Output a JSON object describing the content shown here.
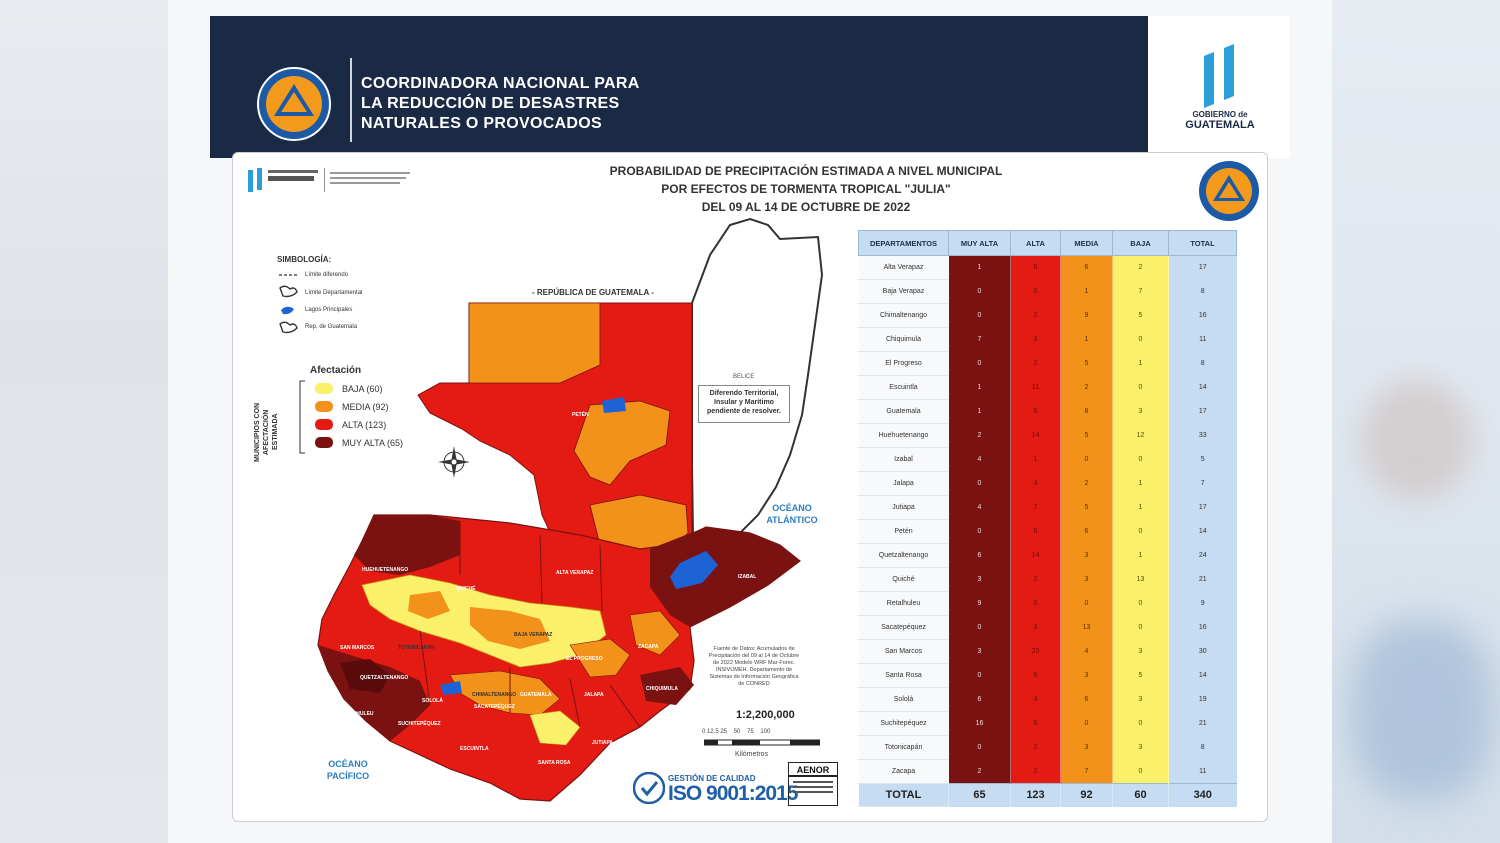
{
  "header": {
    "org_lines": [
      "COORDINADORA NACIONAL PARA",
      "LA REDUCCIÓN DE DESASTRES",
      "NATURALES O PROVOCADOS"
    ],
    "logo_text": "CONRED",
    "gov_line1": "GOBIERNO de",
    "gov_line2": "GUATEMALA"
  },
  "map": {
    "title_lines": [
      "PROBABILIDAD DE PRECIPITACIÓN ESTIMADA A NIVEL MUNICIPAL",
      "POR EFECTOS DE TORMENTA TROPICAL \"JULIA\"",
      "DEL 09 AL  14  DE OCTUBRE DE 2022"
    ],
    "simbologia_title": "SIMBOLOGÍA:",
    "simbologia": [
      "Límite diferendo",
      "Límite Departamental",
      "Lagos Principales",
      "Rep. de Guatemala"
    ],
    "afectacion_title": "Afectación",
    "vertical_label": "MUNICIPIOS CON AFECTACIÓN ESTIMADA",
    "afectacion": [
      {
        "label": "BAJA (60)",
        "color": "#fbf06a"
      },
      {
        "label": "MEDIA (92)",
        "color": "#f2921a"
      },
      {
        "label": "ALTA (123)",
        "color": "#e31b12"
      },
      {
        "label": "MUY ALTA (65)",
        "color": "#7a1212"
      }
    ],
    "republica_label": "- REPÚBLICA DE GUATEMALA -",
    "belice_label": "BELICE",
    "diferendo": "Diferendo Territorial, Insular y Marítimo pendiente de resolver.",
    "ocean_atlantic": "OCÉANO ATLÁNTICO",
    "ocean_pacific": "OCÉANO PACÍFICO",
    "fuente": "Fuente de Datos: Acumulados de Precipitación del 09 al 14 de Octubre de 2022 Modelo WRF Mar-Forec. INSIVUMEH. Departamento de Sistemas de Información Geográfica de CONRED",
    "scale": "1:2,200,000",
    "scale_ticks": "0 12.5 25    50    75    100",
    "km_label": "Kilómetros",
    "iso_small": "GESTIÓN DE CALIDAD",
    "iso_big": "ISO 9001:2015",
    "aenor": "AENOR",
    "dept_labels": [
      "PETÉN",
      "IZABAL",
      "ALTA VERAPAZ",
      "BAJA VERAPAZ",
      "HUEHUETENANGO",
      "QUICHÉ",
      "SAN MARCOS",
      "TOTONICAPÁN",
      "QUETZALTENANGO",
      "ZACAPA",
      "CHIQUIMULA",
      "JALAPA",
      "JUTIAPA",
      "ESCUINTLA",
      "SANTA ROSA",
      "RETALHULEU",
      "SUCHITEPÉQUEZ",
      "GUATEMALA",
      "EL PROGRESO",
      "CHIMALTENANGO",
      "SOLOLÁ",
      "SACATEPÉQUEZ"
    ]
  },
  "table": {
    "headers": [
      "DEPARTAMENTOS",
      "MUY ALTA",
      "ALTA",
      "MEDIA",
      "BAJA",
      "TOTAL"
    ],
    "rows": [
      [
        "Alta Verapaz",
        "1",
        "8",
        "6",
        "2",
        "17"
      ],
      [
        "Baja Verapaz",
        "0",
        "0",
        "1",
        "7",
        "8"
      ],
      [
        "Chimaltenango",
        "0",
        "2",
        "9",
        "5",
        "16"
      ],
      [
        "Chiquimula",
        "7",
        "3",
        "1",
        "0",
        "11"
      ],
      [
        "El Progreso",
        "0",
        "2",
        "5",
        "1",
        "8"
      ],
      [
        "Escuintla",
        "1",
        "11",
        "2",
        "0",
        "14"
      ],
      [
        "Guatemala",
        "1",
        "5",
        "8",
        "3",
        "17"
      ],
      [
        "Huehuetenango",
        "2",
        "14",
        "5",
        "12",
        "33"
      ],
      [
        "Izabal",
        "4",
        "1",
        "0",
        "0",
        "5"
      ],
      [
        "Jalapa",
        "0",
        "4",
        "2",
        "1",
        "7"
      ],
      [
        "Jutiapa",
        "4",
        "7",
        "5",
        "1",
        "17"
      ],
      [
        "Petén",
        "0",
        "8",
        "6",
        "0",
        "14"
      ],
      [
        "Quetzaltenango",
        "6",
        "14",
        "3",
        "1",
        "24"
      ],
      [
        "Quiché",
        "3",
        "2",
        "3",
        "13",
        "21"
      ],
      [
        "Retalhuleu",
        "9",
        "0",
        "0",
        "0",
        "9"
      ],
      [
        "Sacatepéquez",
        "0",
        "3",
        "13",
        "0",
        "16"
      ],
      [
        "San Marcos",
        "3",
        "20",
        "4",
        "3",
        "30"
      ],
      [
        "Santa Rosa",
        "0",
        "6",
        "3",
        "5",
        "14"
      ],
      [
        "Sololá",
        "6",
        "4",
        "6",
        "3",
        "19"
      ],
      [
        "Suchitepéquez",
        "16",
        "5",
        "0",
        "0",
        "21"
      ],
      [
        "Totonicapán",
        "0",
        "2",
        "3",
        "3",
        "8"
      ],
      [
        "Zacapa",
        "2",
        "2",
        "7",
        "0",
        "11"
      ]
    ],
    "total": [
      "TOTAL",
      "65",
      "123",
      "92",
      "60",
      "340"
    ]
  }
}
